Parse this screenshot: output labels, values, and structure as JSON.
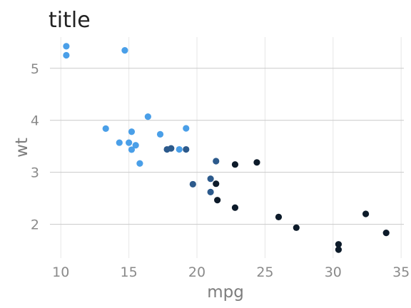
{
  "chart_data": {
    "type": "scatter",
    "title": "title",
    "xlabel": "mpg",
    "ylabel": "wt",
    "xlim": [
      9.2,
      35.2
    ],
    "ylim": [
      1.35,
      5.6
    ],
    "xticks": [
      10,
      15,
      20,
      25,
      30,
      35
    ],
    "yticks": [
      2,
      3,
      4,
      5
    ],
    "grid": true,
    "legend": "none",
    "color_scale": [
      "#0d1b2a",
      "#2c5a8c",
      "#4a9fe8"
    ],
    "points": [
      {
        "x": 21.0,
        "y": 2.62,
        "c": 1
      },
      {
        "x": 21.0,
        "y": 2.875,
        "c": 1
      },
      {
        "x": 22.8,
        "y": 2.32,
        "c": 0
      },
      {
        "x": 21.4,
        "y": 3.215,
        "c": 1
      },
      {
        "x": 18.7,
        "y": 3.44,
        "c": 2
      },
      {
        "x": 18.1,
        "y": 3.46,
        "c": 1
      },
      {
        "x": 14.3,
        "y": 3.57,
        "c": 2
      },
      {
        "x": 24.4,
        "y": 3.19,
        "c": 0
      },
      {
        "x": 22.8,
        "y": 3.15,
        "c": 0
      },
      {
        "x": 19.2,
        "y": 3.44,
        "c": 1
      },
      {
        "x": 17.8,
        "y": 3.44,
        "c": 1
      },
      {
        "x": 16.4,
        "y": 4.07,
        "c": 2
      },
      {
        "x": 17.3,
        "y": 3.73,
        "c": 2
      },
      {
        "x": 15.2,
        "y": 3.78,
        "c": 2
      },
      {
        "x": 10.4,
        "y": 5.25,
        "c": 2
      },
      {
        "x": 10.4,
        "y": 5.424,
        "c": 2
      },
      {
        "x": 14.7,
        "y": 5.345,
        "c": 2
      },
      {
        "x": 32.4,
        "y": 2.2,
        "c": 0
      },
      {
        "x": 30.4,
        "y": 1.615,
        "c": 0
      },
      {
        "x": 33.9,
        "y": 1.835,
        "c": 0
      },
      {
        "x": 21.5,
        "y": 2.465,
        "c": 0
      },
      {
        "x": 15.5,
        "y": 3.52,
        "c": 2
      },
      {
        "x": 15.2,
        "y": 3.435,
        "c": 2
      },
      {
        "x": 13.3,
        "y": 3.84,
        "c": 2
      },
      {
        "x": 19.2,
        "y": 3.845,
        "c": 2
      },
      {
        "x": 27.3,
        "y": 1.935,
        "c": 0
      },
      {
        "x": 26.0,
        "y": 2.14,
        "c": 0
      },
      {
        "x": 30.4,
        "y": 1.513,
        "c": 0
      },
      {
        "x": 15.8,
        "y": 3.17,
        "c": 2
      },
      {
        "x": 19.7,
        "y": 2.77,
        "c": 1
      },
      {
        "x": 15.0,
        "y": 3.57,
        "c": 2
      },
      {
        "x": 21.4,
        "y": 2.78,
        "c": 0
      }
    ]
  }
}
